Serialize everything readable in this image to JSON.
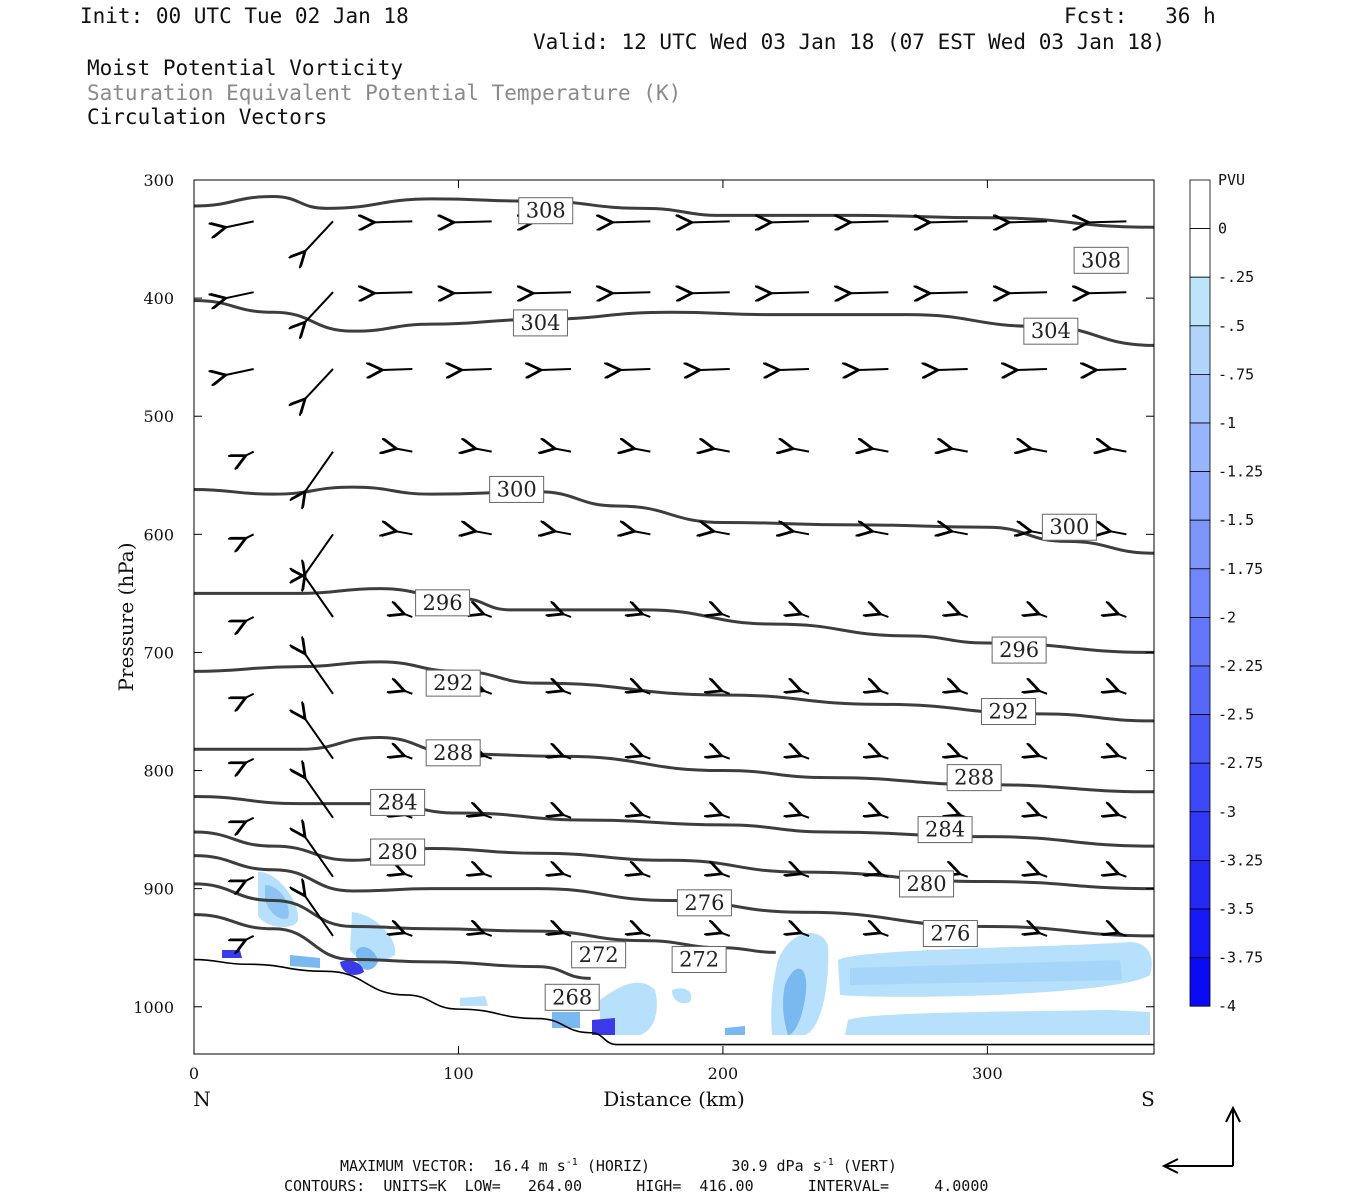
{
  "header": {
    "init": "Init: 00 UTC Tue 02 Jan 18",
    "fcst": "Fcst:   36 h",
    "valid": "Valid: 12 UTC Wed 03 Jan 18 (07 EST Wed 03 Jan 18)",
    "field1": "Moist Potential Vorticity",
    "field2": "Saturation Equivalent Potential Temperature (K)",
    "field3": "Circulation Vectors"
  },
  "footer": {
    "max_vector_label": "MAXIMUM VECTOR:",
    "max_vector_horiz": "16.4 m s",
    "max_vector_horiz_units": "(HORIZ)",
    "max_vector_vert": "30.9 dPa s",
    "max_vector_vert_units": "(VERT)",
    "exp": "-1",
    "contours": "CONTOURS:  UNITS=K  LOW=   264.00      HIGH=  416.00      INTERVAL=     4.0000"
  },
  "colors": {
    "contour": "#3d3d3d",
    "terrain": "#000000",
    "pv_light": "#b6e0fb",
    "pv_mid": "#7ab8f0",
    "pv_dark": "#3a3ae8"
  },
  "chart_data": {
    "type": "cross-section",
    "xlabel": "Distance (km)",
    "ylabel": "Pressure (hPa)",
    "xlim": [
      0,
      363
    ],
    "ylim": [
      1040,
      300
    ],
    "x_ticks": [
      0,
      100,
      200,
      300
    ],
    "y_ticks": [
      300,
      400,
      500,
      600,
      700,
      800,
      900,
      1000
    ],
    "x_end_labels": {
      "left": "N",
      "right": "S"
    },
    "colorbar": {
      "units": "PVU",
      "levels": [
        "0",
        "-.25",
        "-.5",
        "-.75",
        "-1",
        "-1.25",
        "-1.5",
        "-1.75",
        "-2",
        "-2.25",
        "-2.5",
        "-2.75",
        "-3",
        "-3.25",
        "-3.5",
        "-3.75",
        "-4"
      ]
    },
    "theta_e_contours": [
      {
        "value": 308,
        "points": [
          [
            0,
            322
          ],
          [
            30,
            314
          ],
          [
            50,
            324
          ],
          [
            90,
            316
          ],
          [
            130,
            318
          ],
          [
            170,
            324
          ],
          [
            200,
            330
          ],
          [
            250,
            330
          ],
          [
            300,
            332
          ],
          [
            363,
            340
          ]
        ],
        "label_positions": [
          [
            133,
            326
          ],
          [
            343,
            368
          ]
        ]
      },
      {
        "value": 304,
        "points": [
          [
            0,
            402
          ],
          [
            30,
            412
          ],
          [
            60,
            428
          ],
          [
            90,
            422
          ],
          [
            130,
            418
          ],
          [
            180,
            412
          ],
          [
            220,
            414
          ],
          [
            270,
            414
          ],
          [
            320,
            424
          ],
          [
            363,
            440
          ]
        ],
        "label_positions": [
          [
            131,
            421
          ],
          [
            324,
            428
          ]
        ]
      },
      {
        "value": 300,
        "points": [
          [
            0,
            562
          ],
          [
            30,
            566
          ],
          [
            60,
            560
          ],
          [
            90,
            566
          ],
          [
            130,
            564
          ],
          [
            160,
            576
          ],
          [
            200,
            590
          ],
          [
            250,
            592
          ],
          [
            300,
            594
          ],
          [
            330,
            606
          ],
          [
            363,
            616
          ]
        ],
        "label_positions": [
          [
            122,
            562
          ],
          [
            331,
            594
          ]
        ]
      },
      {
        "value": 296,
        "points": [
          [
            0,
            650
          ],
          [
            40,
            650
          ],
          [
            70,
            646
          ],
          [
            100,
            654
          ],
          [
            120,
            664
          ],
          [
            170,
            664
          ],
          [
            220,
            676
          ],
          [
            270,
            686
          ],
          [
            300,
            692
          ],
          [
            363,
            700
          ]
        ],
        "label_positions": [
          [
            94,
            658
          ],
          [
            312,
            698
          ]
        ]
      },
      {
        "value": 292,
        "points": [
          [
            0,
            716
          ],
          [
            40,
            712
          ],
          [
            70,
            708
          ],
          [
            100,
            716
          ],
          [
            130,
            726
          ],
          [
            200,
            736
          ],
          [
            260,
            744
          ],
          [
            320,
            752
          ],
          [
            363,
            758
          ]
        ],
        "label_positions": [
          [
            98,
            726
          ],
          [
            308,
            750
          ]
        ]
      },
      {
        "value": 288,
        "points": [
          [
            0,
            782
          ],
          [
            40,
            782
          ],
          [
            70,
            772
          ],
          [
            100,
            786
          ],
          [
            140,
            788
          ],
          [
            200,
            800
          ],
          [
            240,
            806
          ],
          [
            300,
            812
          ],
          [
            363,
            818
          ]
        ],
        "label_positions": [
          [
            98,
            785
          ],
          [
            295,
            806
          ]
        ]
      },
      {
        "value": 284,
        "points": [
          [
            0,
            822
          ],
          [
            40,
            828
          ],
          [
            70,
            828
          ],
          [
            100,
            836
          ],
          [
            150,
            842
          ],
          [
            200,
            846
          ],
          [
            240,
            852
          ],
          [
            300,
            856
          ],
          [
            363,
            864
          ]
        ],
        "label_positions": [
          [
            77,
            827
          ],
          [
            284,
            850
          ]
        ]
      },
      {
        "value": 280,
        "points": [
          [
            0,
            852
          ],
          [
            30,
            864
          ],
          [
            60,
            876
          ],
          [
            90,
            866
          ],
          [
            130,
            870
          ],
          [
            180,
            876
          ],
          [
            230,
            886
          ],
          [
            300,
            894
          ],
          [
            363,
            900
          ]
        ],
        "label_positions": [
          [
            77,
            869
          ],
          [
            277,
            896
          ]
        ]
      },
      {
        "value": 276,
        "points": [
          [
            0,
            872
          ],
          [
            30,
            884
          ],
          [
            60,
            902
          ],
          [
            90,
            900
          ],
          [
            130,
            900
          ],
          [
            180,
            910
          ],
          [
            230,
            920
          ],
          [
            300,
            932
          ],
          [
            363,
            940
          ]
        ],
        "label_positions": [
          [
            193,
            912
          ],
          [
            286,
            938
          ]
        ]
      },
      {
        "value": 272,
        "points": [
          [
            0,
            896
          ],
          [
            30,
            910
          ],
          [
            60,
            932
          ],
          [
            90,
            934
          ],
          [
            130,
            936
          ],
          [
            170,
            944
          ],
          [
            200,
            950
          ],
          [
            220,
            954
          ]
        ],
        "label_positions": [
          [
            153,
            956
          ],
          [
            191,
            960
          ]
        ]
      },
      {
        "value": 268,
        "points": [
          [
            0,
            922
          ],
          [
            30,
            934
          ],
          [
            60,
            960
          ],
          [
            90,
            962
          ],
          [
            130,
            966
          ],
          [
            150,
            976
          ]
        ],
        "label_positions": [
          [
            143,
            992
          ]
        ]
      }
    ],
    "terrain": [
      [
        0,
        960
      ],
      [
        20,
        964
      ],
      [
        50,
        970
      ],
      [
        80,
        990
      ],
      [
        100,
        1002
      ],
      [
        130,
        1010
      ],
      [
        150,
        1022
      ],
      [
        160,
        1032
      ],
      [
        200,
        1032
      ],
      [
        250,
        1032
      ],
      [
        300,
        1032
      ],
      [
        363,
        1032
      ]
    ]
  }
}
